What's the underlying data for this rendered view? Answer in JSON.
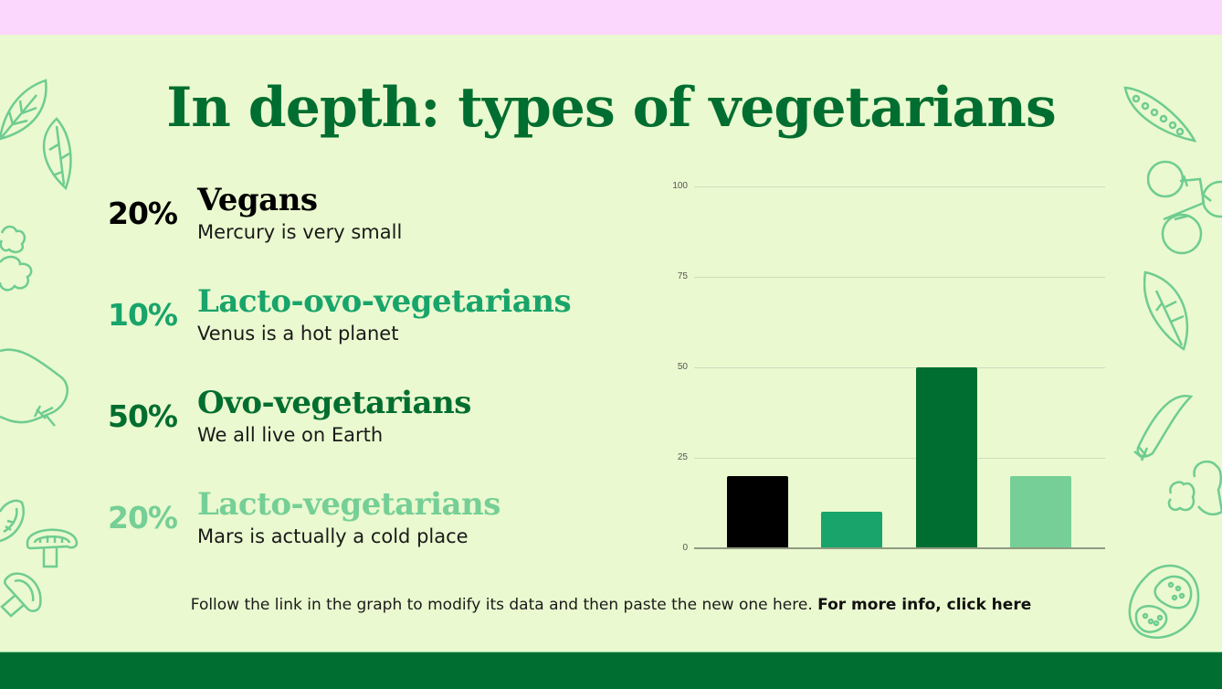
{
  "slide": {
    "title": "In depth: types of vegetarians",
    "colors": {
      "top_band": "#fbd6fd",
      "background": "#eaf9cf",
      "bottom_band": "#006e30",
      "title": "#006e30",
      "decoration": "#6fcc91"
    }
  },
  "items": [
    {
      "percent": "20%",
      "name": "Vegans",
      "description": "Mercury is very small",
      "color": "#000000"
    },
    {
      "percent": "10%",
      "name": "Lacto-ovo-vegetarians",
      "description": "Venus is a hot planet",
      "color": "#18a46b"
    },
    {
      "percent": "50%",
      "name": "Ovo-vegetarians",
      "description": "We all live on Earth",
      "color": "#006e30"
    },
    {
      "percent": "20%",
      "name": "Lacto-vegetarians",
      "description": "Mars is actually a cold place",
      "color": "#75cf96"
    }
  ],
  "footer": {
    "note": "Follow the link in the graph to modify its data and then paste the new one here. ",
    "link_label": "For more info, click here"
  },
  "chart_data": {
    "type": "bar",
    "title": "",
    "xlabel": "",
    "ylabel": "",
    "categories": [
      "Vegans",
      "Lacto-ovo-vegetarians",
      "Ovo-vegetarians",
      "Lacto-vegetarians"
    ],
    "values": [
      20,
      10,
      50,
      20
    ],
    "colors": [
      "#000000",
      "#18a46b",
      "#006e30",
      "#75cf96"
    ],
    "ylim": [
      0,
      100
    ],
    "yticks": [
      "100",
      "75",
      "50",
      "25",
      "0"
    ],
    "grid": true,
    "legend": "none"
  }
}
